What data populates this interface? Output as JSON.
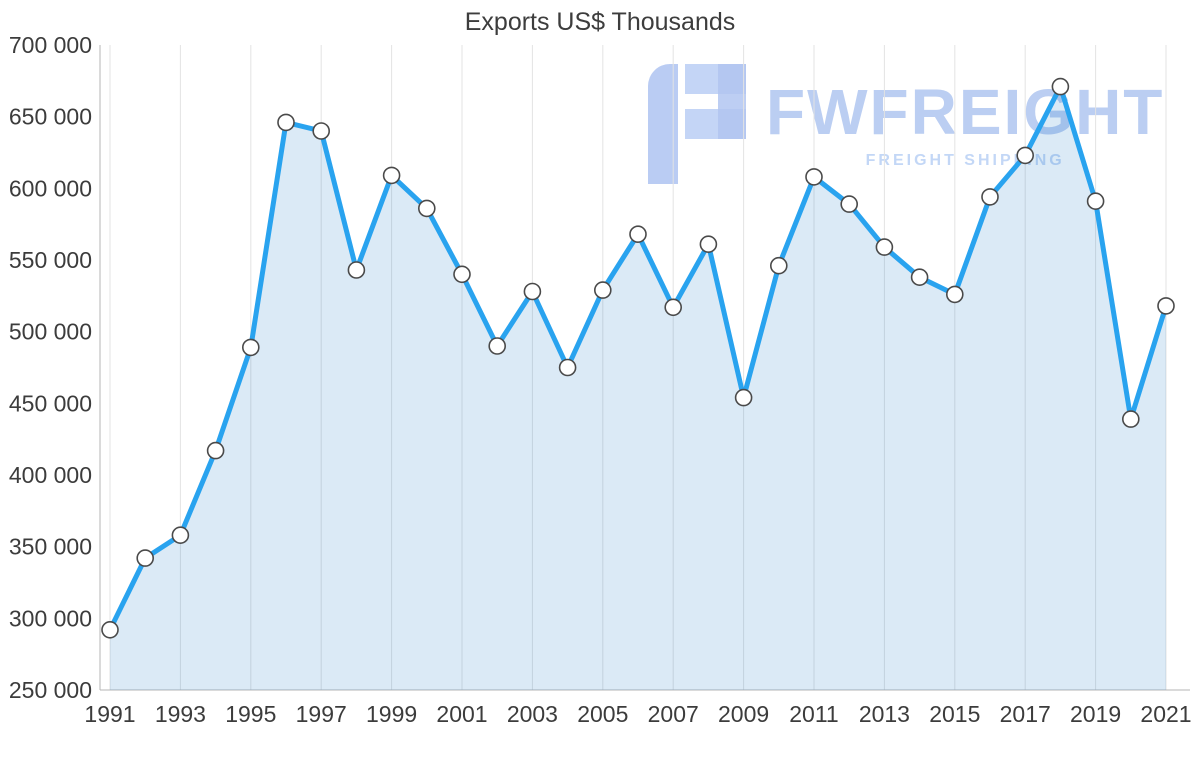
{
  "chart_data": {
    "type": "area",
    "title": "Exports US$ Thousands",
    "x": [
      1991,
      1992,
      1993,
      1994,
      1995,
      1996,
      1997,
      1998,
      1999,
      2000,
      2001,
      2002,
      2003,
      2004,
      2005,
      2006,
      2007,
      2008,
      2009,
      2010,
      2011,
      2012,
      2013,
      2014,
      2015,
      2016,
      2017,
      2018,
      2019,
      2020,
      2021
    ],
    "series": [
      {
        "name": "Exports US$ Thousands",
        "values": [
          292000,
          342000,
          358000,
          417000,
          489000,
          646000,
          640000,
          543000,
          609000,
          586000,
          540000,
          490000,
          528000,
          475000,
          529000,
          568000,
          517000,
          561000,
          454000,
          546000,
          608000,
          589000,
          559000,
          538000,
          526000,
          594000,
          623000,
          671000,
          591000,
          439000,
          518000
        ]
      }
    ],
    "ylim": [
      250000,
      700000
    ],
    "ytick_step": 50000,
    "xtick_every": 2,
    "grid": "vertical-only",
    "legend": "none",
    "xlabel": "",
    "ylabel": "",
    "line_color": "#29a3ef",
    "area_color": "rgba(32,122,199,0.16)",
    "marker_fill": "#ffffff",
    "marker_stroke": "#4a4a4a",
    "axis_color": "#b5b5b5",
    "grid_color": "#e3e3e3",
    "label_color": "#3c3c3c"
  },
  "watermark": {
    "brand": "FWFREIGHT",
    "tagline": "FREIGHT SHIPPING",
    "color": "#b4c9f1"
  }
}
